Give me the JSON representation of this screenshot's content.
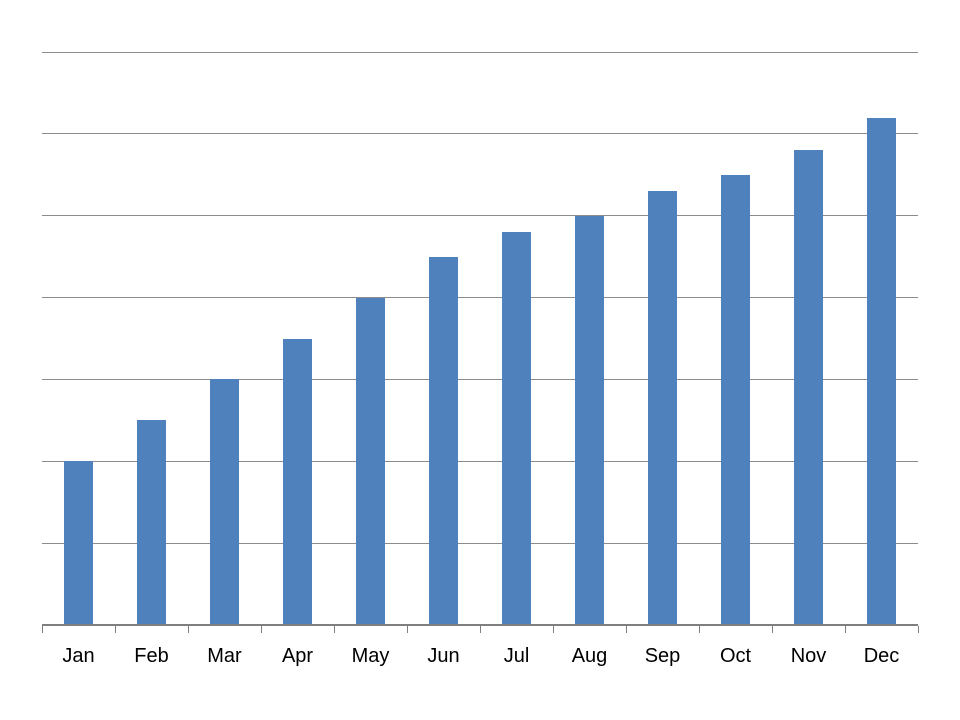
{
  "chart_data": {
    "type": "bar",
    "title": "",
    "xlabel": "",
    "ylabel": "",
    "categories": [
      "Jan",
      "Feb",
      "Mar",
      "Apr",
      "May",
      "Jun",
      "Jul",
      "Aug",
      "Sep",
      "Oct",
      "Nov",
      "Dec"
    ],
    "values": [
      2.0,
      2.5,
      3.0,
      3.5,
      4.0,
      4.5,
      4.8,
      5.0,
      5.3,
      5.5,
      5.8,
      6.2
    ],
    "ylim": [
      0,
      7
    ],
    "gridline_interval": 1,
    "grid": true,
    "legend": false,
    "y_tick_labels_visible": false,
    "x_tick_marks": "outside",
    "bar_gap_width_percent": 150,
    "colors": {
      "bar": "#4F81BD",
      "gridline": "#8C8C8C",
      "axis": "#7F7F7F",
      "tick": "#7F7F7F",
      "label_text": "#000000",
      "background": "#FFFFFF"
    }
  }
}
